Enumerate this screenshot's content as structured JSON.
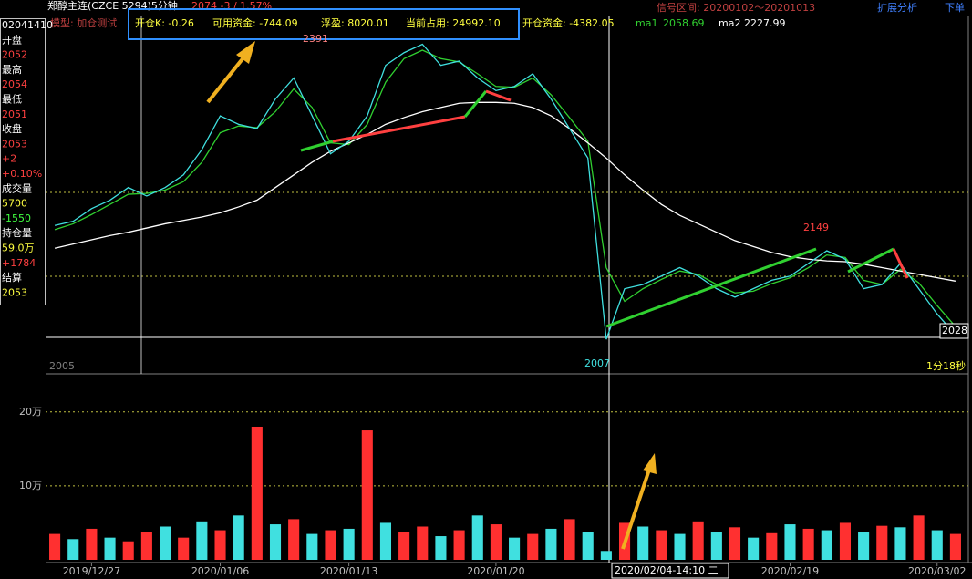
{
  "header": {
    "symbol": "郑醇主连(CZCE 5294)5分钟",
    "quote": "2074  -3 / 1.57%",
    "signal_range": "信号区间: 20200102～20201013",
    "menu_analysis": "扩展分析",
    "menu_order": "下单"
  },
  "side_panel": [
    {
      "text": "02041410",
      "color": "#ffffff"
    },
    {
      "text": "开盘",
      "color": "#ffffff"
    },
    {
      "text": "2052",
      "color": "#ff4040"
    },
    {
      "text": "最高",
      "color": "#ffffff"
    },
    {
      "text": "2054",
      "color": "#ff4040"
    },
    {
      "text": "最低",
      "color": "#ffffff"
    },
    {
      "text": "2051",
      "color": "#ff4040"
    },
    {
      "text": "收盘",
      "color": "#ffffff"
    },
    {
      "text": "2053",
      "color": "#ff4040"
    },
    {
      "text": "+2",
      "color": "#ff4040"
    },
    {
      "text": "+0.10%",
      "color": "#ff4040"
    },
    {
      "text": "成交量",
      "color": "#ffffff"
    },
    {
      "text": "5700",
      "color": "#ffff40"
    },
    {
      "text": "-1550",
      "color": "#40ff40"
    },
    {
      "text": "持仓量",
      "color": "#ffffff"
    },
    {
      "text": "59.0万",
      "color": "#ffff40"
    },
    {
      "text": "+1784",
      "color": "#ff4040"
    },
    {
      "text": "结算",
      "color": "#ffffff"
    },
    {
      "text": "2053",
      "color": "#ffff40"
    }
  ],
  "info": {
    "model": "模型: 加仓测试",
    "open_k": "开仓K: -0.26",
    "available": "可用资金: -744.09",
    "floating": "浮盈: 8020.01",
    "occupied": "当前占用: 24992.10",
    "open_funds": "开仓资金: -4382.05",
    "ma1_value": "2058.69",
    "ma2_value": "2227.99"
  },
  "annotations": {
    "high": "2391",
    "low": "2007",
    "peak": "2149",
    "last": "2028",
    "timer": "1分18秒",
    "corner": "2005",
    "cursor_time": "2020/02/04-14:10 二"
  },
  "chart_data": [
    {
      "type": "line",
      "ylim": [
        1994,
        2418
      ],
      "color": "#40e0e0",
      "values": [
        2170,
        2175,
        2190,
        2200,
        2215,
        2205,
        2215,
        2230,
        2260,
        2300,
        2290,
        2285,
        2320,
        2345,
        2300,
        2255,
        2270,
        2300,
        2360,
        2375,
        2385,
        2360,
        2365,
        2345,
        2330,
        2335,
        2350,
        2320,
        2285,
        2250,
        2035,
        2095,
        2100,
        2110,
        2120,
        2110,
        2095,
        2085,
        2095,
        2105,
        2110,
        2125,
        2140,
        2130,
        2095,
        2100,
        2125,
        2095,
        2065,
        2040
      ],
      "series": [
        {
          "name": "ma1",
          "color": "#30d030",
          "values": [
            2165,
            2172,
            2183,
            2195,
            2207,
            2208,
            2212,
            2222,
            2245,
            2280,
            2288,
            2286,
            2305,
            2332,
            2310,
            2268,
            2266,
            2290,
            2340,
            2368,
            2378,
            2368,
            2364,
            2350,
            2335,
            2334,
            2345,
            2325,
            2298,
            2270,
            2120,
            2080,
            2095,
            2106,
            2116,
            2112,
            2100,
            2090,
            2092,
            2101,
            2108,
            2120,
            2135,
            2132,
            2105,
            2100,
            2118,
            2102,
            2075,
            2050
          ]
        },
        {
          "name": "ma2",
          "color": "#ffffff",
          "values": [
            2143,
            2148,
            2153,
            2158,
            2162,
            2167,
            2172,
            2176,
            2180,
            2185,
            2192,
            2200,
            2215,
            2230,
            2245,
            2258,
            2268,
            2278,
            2290,
            2298,
            2305,
            2310,
            2315,
            2316,
            2316,
            2315,
            2310,
            2300,
            2285,
            2268,
            2250,
            2230,
            2212,
            2195,
            2182,
            2172,
            2162,
            2152,
            2145,
            2138,
            2133,
            2130,
            2128,
            2127,
            2124,
            2120,
            2116,
            2112,
            2108,
            2104
          ]
        }
      ]
    },
    {
      "type": "bar",
      "ylim": [
        0,
        233000
      ],
      "yticks": [
        {
          "value": 100000,
          "label": "10万"
        },
        {
          "value": 200000,
          "label": "20万"
        }
      ],
      "categories": [
        null,
        null,
        "2019/12/27",
        null,
        null,
        null,
        null,
        null,
        null,
        "2020/01/06",
        null,
        null,
        null,
        null,
        null,
        null,
        "2020/01/13",
        null,
        null,
        null,
        null,
        null,
        null,
        null,
        "2020/01/20",
        null,
        null,
        null,
        null,
        null,
        null,
        null,
        null,
        null,
        null,
        null,
        null,
        null,
        null,
        null,
        "2020/02/19",
        null,
        null,
        null,
        null,
        null,
        null,
        null,
        "2020/03/02",
        null
      ],
      "values": [
        35000,
        28000,
        42000,
        30000,
        25000,
        38000,
        45000,
        30000,
        52000,
        40000,
        60000,
        180000,
        48000,
        55000,
        35000,
        40000,
        42000,
        175000,
        50000,
        38000,
        45000,
        32000,
        40000,
        60000,
        48000,
        30000,
        35000,
        42000,
        55000,
        38000,
        12000,
        50000,
        45000,
        40000,
        35000,
        52000,
        38000,
        44000,
        30000,
        36000,
        48000,
        42000,
        40000,
        50000,
        38000,
        46000,
        44000,
        60000,
        40000,
        35000
      ],
      "bar_colors": [
        "#ff3030",
        "#40e0e0",
        "#ff3030",
        "#40e0e0",
        "#ff3030",
        "#ff3030",
        "#40e0e0",
        "#ff3030",
        "#40e0e0",
        "#ff3030",
        "#40e0e0",
        "#ff3030",
        "#40e0e0",
        "#ff3030",
        "#40e0e0",
        "#ff3030",
        "#40e0e0",
        "#ff3030",
        "#40e0e0",
        "#ff3030",
        "#ff3030",
        "#40e0e0",
        "#ff3030",
        "#40e0e0",
        "#ff3030",
        "#40e0e0",
        "#ff3030",
        "#40e0e0",
        "#ff3030",
        "#40e0e0",
        "#40e0e0",
        "#ff3030",
        "#40e0e0",
        "#ff3030",
        "#40e0e0",
        "#ff3030",
        "#40e0e0",
        "#ff3030",
        "#40e0e0",
        "#ff3030",
        "#40e0e0",
        "#ff3030",
        "#40e0e0",
        "#ff3030",
        "#40e0e0",
        "#ff3030",
        "#40e0e0",
        "#ff3030",
        "#40e0e0",
        "#ff3030"
      ]
    }
  ]
}
